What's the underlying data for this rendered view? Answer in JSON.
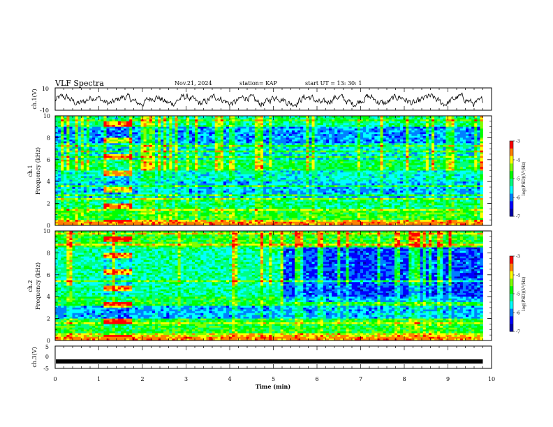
{
  "header": {
    "title": "VLF Spectra",
    "date": "Nov.21, 2024",
    "station": "station= KAP",
    "start_ut": "start  UT =   13: 30: 1"
  },
  "colors": {
    "colormap": [
      "#0000aa",
      "#0000ff",
      "#0080ff",
      "#00ffff",
      "#00ff80",
      "#00ff00",
      "#80ff00",
      "#ffff00",
      "#ff8000",
      "#ff0000"
    ],
    "axis": "#000000",
    "background": "#ffffff"
  },
  "chart_data": [
    {
      "type": "line",
      "panel": "ch1-waveform",
      "ylabel": "ch.1(V)",
      "ylim": [
        -10,
        10
      ],
      "ytick_labels": [
        "10",
        "-10"
      ],
      "xlim": [
        0,
        10
      ],
      "description_of_values": "noisy voltage trace oscillating roughly between -4 and +3 V over 0–9.8 min"
    },
    {
      "type": "heatmap",
      "panel": "ch1-spectrogram",
      "ylabel": "ch.1",
      "ylabel2": "Frequency (kHz)",
      "ylim": [
        0,
        10
      ],
      "ytick_labels": [
        "0",
        "2",
        "4",
        "6",
        "8",
        "10"
      ],
      "xlim": [
        0,
        10
      ],
      "data_extent_min": [
        0,
        9.8
      ],
      "colorbar": {
        "label": "log(PSD)(V²/Hz)",
        "range": [
          -7,
          -3
        ],
        "tick_labels": [
          "-3",
          "-4",
          "-5",
          "-6",
          "-7"
        ]
      },
      "band_profile": [
        {
          "f": [
            0,
            0.5
          ],
          "level": -4.0
        },
        {
          "f": [
            0.5,
            1.5
          ],
          "level": -4.8
        },
        {
          "f": [
            1.5,
            2.5
          ],
          "level": -5.2
        },
        {
          "f": [
            2.5,
            4.0
          ],
          "level": -5.8
        },
        {
          "f": [
            4.0,
            5.0
          ],
          "level": -5.5
        },
        {
          "f": [
            5.0,
            6.0
          ],
          "level": -5.0
        },
        {
          "f": [
            6.0,
            7.5
          ],
          "level": -5.6
        },
        {
          "f": [
            7.5,
            9.0
          ],
          "level": -5.9
        },
        {
          "f": [
            9.0,
            10.0
          ],
          "level": -5.2
        }
      ],
      "burst_interval_min": [
        1.1,
        1.75
      ]
    },
    {
      "type": "heatmap",
      "panel": "ch2-spectrogram",
      "ylabel": "ch.2",
      "ylabel2": "Frequency (kHz)",
      "ylim": [
        0,
        10
      ],
      "ytick_labels": [
        "0",
        "2",
        "4",
        "6",
        "8",
        "10"
      ],
      "xlim": [
        0,
        10
      ],
      "data_extent_min": [
        0,
        9.8
      ],
      "colorbar": {
        "label": "log(PSD)(V²/Hz)",
        "range": [
          -7,
          -3
        ],
        "tick_labels": [
          "-3",
          "-4",
          "-5",
          "-6",
          "-7"
        ]
      },
      "band_profile": [
        {
          "f": [
            0,
            0.5
          ],
          "level": -4.0
        },
        {
          "f": [
            0.5,
            2.0
          ],
          "level": -4.9
        },
        {
          "f": [
            2.0,
            3.2
          ],
          "level": -5.8
        },
        {
          "f": [
            3.2,
            4.0
          ],
          "level": -4.9
        },
        {
          "f": [
            4.0,
            5.0
          ],
          "level": -5.3
        },
        {
          "f": [
            5.0,
            6.5
          ],
          "level": -5.3
        },
        {
          "f": [
            6.5,
            8.5
          ],
          "level": -5.3
        },
        {
          "f": [
            8.5,
            10.0
          ],
          "level": -4.8
        }
      ],
      "quiet_after_min": 5.2,
      "burst_interval_min": [
        1.1,
        1.75
      ]
    },
    {
      "type": "line",
      "panel": "ch3-waveform",
      "ylabel": "ch.3(V)",
      "ylim": [
        -5,
        5
      ],
      "ytick_labels": [
        "5",
        "0",
        "-5"
      ],
      "xlim": [
        0,
        10
      ],
      "constant_value": -1.9
    }
  ],
  "xaxis": {
    "label": "Time  (min)",
    "tick_labels": [
      "0",
      "1",
      "2",
      "3",
      "4",
      "5",
      "6",
      "7",
      "8",
      "9",
      "10"
    ]
  }
}
